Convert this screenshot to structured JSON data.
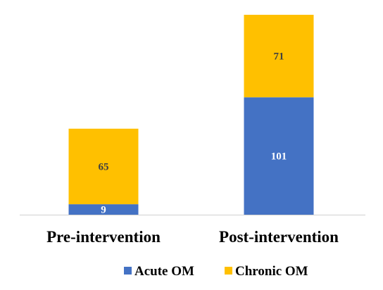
{
  "chart_data": {
    "type": "bar",
    "stacked": true,
    "categories": [
      "Pre-intervention",
      "Post-intervention"
    ],
    "series": [
      {
        "name": "Acute OM",
        "values": [
          9,
          101
        ],
        "color": "#4472C4",
        "label_color": "#ffffff"
      },
      {
        "name": "Chronic OM",
        "values": [
          65,
          71
        ],
        "color": "#FFC000",
        "label_color": "#404040"
      }
    ],
    "title": "",
    "xlabel": "",
    "ylabel": "",
    "ylim": [
      0,
      172
    ],
    "grid": false,
    "legend": "bottom"
  }
}
